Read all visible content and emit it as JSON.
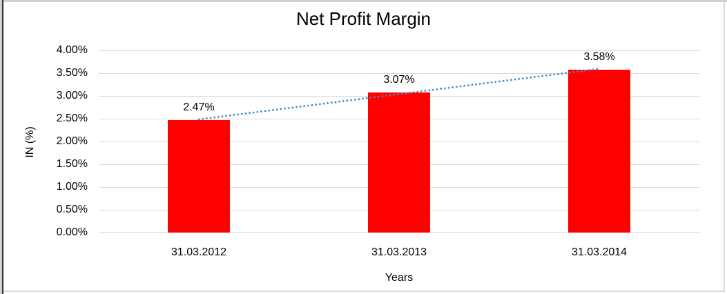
{
  "chart_data": {
    "type": "bar",
    "title": "Net Profit Margin",
    "xlabel": "Years",
    "ylabel": "IN (%)",
    "categories": [
      "31.03.2012",
      "31.03.2013",
      "31.03.2014"
    ],
    "values": [
      2.47,
      3.07,
      3.58
    ],
    "data_labels": [
      "2.47%",
      "3.07%",
      "3.58%"
    ],
    "ytick_labels": [
      "0.00%",
      "0.50%",
      "1.00%",
      "1.50%",
      "2.00%",
      "2.50%",
      "3.00%",
      "3.50%",
      "4.00%"
    ],
    "ylim": [
      0,
      4
    ],
    "ytick_step": 0.5,
    "grid": true,
    "legend": false,
    "trendline": {
      "type": "linear",
      "style": "dotted",
      "color": "#4a86c8"
    },
    "colors": {
      "bar": "#ff0000",
      "gridline": "#d9d9d9",
      "text": "#000000",
      "frame_gray": "#d2d2d2",
      "frame_dark": "#2f2f2f"
    }
  }
}
